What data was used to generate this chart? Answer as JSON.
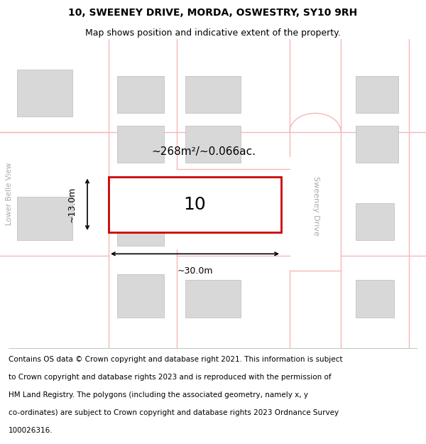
{
  "title": "10, SWEENEY DRIVE, MORDA, OSWESTRY, SY10 9RH",
  "subtitle": "Map shows position and indicative extent of the property.",
  "footer": "Contains OS data © Crown copyright and database right 2021. This information is subject to Crown copyright and database rights 2023 and is reproduced with the permission of HM Land Registry. The polygons (including the associated geometry, namely x, y co-ordinates) are subject to Crown copyright and database rights 2023 Ordnance Survey 100026316.",
  "background_color": "#ffffff",
  "title_fontsize": 10,
  "subtitle_fontsize": 9,
  "footer_fontsize": 7.5,
  "road_color": "#f5b8b8",
  "road_lw": 1.0,
  "building_facecolor": "#d8d8d8",
  "building_edgecolor": "#bbbbbb",
  "highlight_color": "#cc0000",
  "highlight_lw": 2.0,
  "property_label": "10",
  "property_label_fontsize": 18,
  "area_text": "~268m²/~0.066ac.",
  "area_fontsize": 11,
  "dim_w_text": "~30.0m",
  "dim_h_text": "~13.0m",
  "dim_fontsize": 9,
  "street_sweeney": "Sweeney Drive",
  "street_belle": "Lower Belle View",
  "street_fontsize": 8,
  "street_color": "#aaaaaa"
}
